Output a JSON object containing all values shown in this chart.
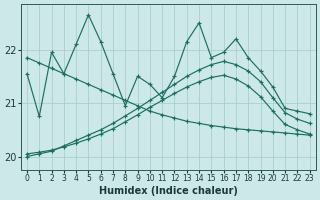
{
  "xlabel": "Humidex (Indice chaleur)",
  "bg_color": "#cce8e8",
  "line_color": "#1a7060",
  "grid_color": "#aacece",
  "xlim": [
    -0.5,
    23.5
  ],
  "ylim": [
    19.75,
    22.85
  ],
  "yticks": [
    20,
    21,
    22
  ],
  "xticks": [
    0,
    1,
    2,
    3,
    4,
    5,
    6,
    7,
    8,
    9,
    10,
    11,
    12,
    13,
    14,
    15,
    16,
    17,
    18,
    19,
    20,
    21,
    22,
    23
  ],
  "lines": [
    {
      "x": [
        0,
        1,
        2,
        3,
        4,
        5,
        6,
        7,
        8,
        9,
        10,
        11,
        12,
        13,
        14,
        15,
        16,
        17,
        18,
        19,
        20,
        21,
        22,
        23
      ],
      "y": [
        21.55,
        20.75,
        21.95,
        21.55,
        22.1,
        22.65,
        22.15,
        21.55,
        20.95,
        21.5,
        21.35,
        21.1,
        21.5,
        22.15,
        22.5,
        21.85,
        21.95,
        22.2,
        21.85,
        21.6,
        21.3,
        20.9,
        20.85,
        20.8
      ]
    },
    {
      "x": [
        0,
        1,
        2,
        3,
        4,
        5,
        6,
        7,
        8,
        9,
        10,
        11,
        12,
        13,
        14,
        15,
        16,
        17,
        18,
        19,
        20,
        21,
        22,
        23
      ],
      "y": [
        21.85,
        21.75,
        21.65,
        21.55,
        21.45,
        21.35,
        21.25,
        21.15,
        21.05,
        20.95,
        20.85,
        20.78,
        20.72,
        20.66,
        20.62,
        20.58,
        20.55,
        20.52,
        20.5,
        20.48,
        20.46,
        20.44,
        20.42,
        20.4
      ]
    },
    {
      "x": [
        0,
        1,
        2,
        3,
        4,
        5,
        6,
        7,
        8,
        9,
        10,
        11,
        12,
        13,
        14,
        15,
        16,
        17,
        18,
        19,
        20,
        21,
        22,
        23
      ],
      "y": [
        20.0,
        20.05,
        20.1,
        20.2,
        20.3,
        20.4,
        20.5,
        20.62,
        20.76,
        20.9,
        21.05,
        21.2,
        21.35,
        21.5,
        21.62,
        21.72,
        21.78,
        21.72,
        21.6,
        21.4,
        21.1,
        20.82,
        20.7,
        20.62
      ]
    },
    {
      "x": [
        0,
        1,
        2,
        3,
        4,
        5,
        6,
        7,
        8,
        9,
        10,
        11,
        12,
        13,
        14,
        15,
        16,
        17,
        18,
        19,
        20,
        21,
        22,
        23
      ],
      "y": [
        20.05,
        20.08,
        20.12,
        20.18,
        20.25,
        20.33,
        20.42,
        20.52,
        20.65,
        20.78,
        20.92,
        21.05,
        21.18,
        21.3,
        21.4,
        21.48,
        21.52,
        21.45,
        21.32,
        21.12,
        20.85,
        20.6,
        20.5,
        20.42
      ]
    }
  ]
}
